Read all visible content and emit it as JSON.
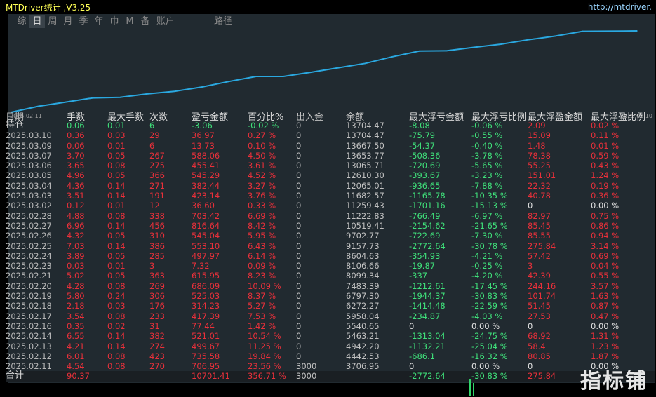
{
  "window": {
    "title": "MTDriver统计 ,V3.25",
    "site": "http://mtdriver."
  },
  "tabs": [
    {
      "label": "综"
    },
    {
      "label": "日",
      "active": true
    },
    {
      "label": "周"
    },
    {
      "label": "月"
    },
    {
      "label": "季"
    },
    {
      "label": "年"
    },
    {
      "label": "巾"
    },
    {
      "label": "M"
    },
    {
      "label": "备"
    },
    {
      "label": "账户"
    }
  ],
  "tab_path": "路径",
  "colors": {
    "positive": "#e8303a",
    "negative": "#3fe07a",
    "line": "#2aa8e0",
    "panel": "#212a30"
  },
  "chart_data": {
    "type": "line",
    "x_start_label": "2025.02.11",
    "x_end_label": "2025.03.10",
    "x": [
      "2025.02.11",
      "2025.02.12",
      "2025.02.13",
      "2025.02.14",
      "2025.02.16",
      "2025.02.17",
      "2025.02.18",
      "2025.02.19",
      "2025.02.20",
      "2025.02.21",
      "2025.02.23",
      "2025.02.24",
      "2025.02.25",
      "2025.02.26",
      "2025.02.27",
      "2025.02.28",
      "2025.03.02",
      "2025.03.03",
      "2025.03.04",
      "2025.03.05",
      "2025.03.06",
      "2025.03.07",
      "2025.03.09",
      "2025.03.10"
    ],
    "values": [
      3706.95,
      4442.53,
      4942.2,
      5463.21,
      5540.65,
      5958.04,
      6272.27,
      6797.3,
      7483.39,
      8099.34,
      8106.66,
      8604.63,
      9157.73,
      9702.77,
      10519.41,
      11222.83,
      11259.43,
      11682.57,
      12065.01,
      12610.3,
      13065.71,
      13653.77,
      13667.5,
      13704.47
    ]
  },
  "headers": {
    "date": "日期",
    "lots": "手数",
    "max_lots": "最大手数",
    "count": "次数",
    "pl": "盈亏金额",
    "pct": "百分比%",
    "io": "出入金",
    "balance": "余额",
    "max_float_loss": "最大浮亏金额",
    "max_float_loss_pct": "最大浮亏比例",
    "max_float_profit": "最大浮盈金额",
    "max_float_profit_pct": "最大浮盈比例"
  },
  "hold": {
    "date": "持仓",
    "lots": "0.06",
    "max": "0.01",
    "cnt": "6",
    "pl": "-3.06",
    "pct": "-0.02 %",
    "io": "0",
    "bal": "13704.47",
    "mfl": "-8.08",
    "mflp": "-0.06 %",
    "mfp": "2.09",
    "mfpp": "0.02 %"
  },
  "rows": [
    {
      "date": "2025.03.10",
      "lots": "0.36",
      "max": "0.03",
      "cnt": "29",
      "pl": "36.97",
      "pct": "0.27 %",
      "io": "0",
      "bal": "13704.47",
      "mfl": "-75.79",
      "mflp": "-0.55 %",
      "mfp": "15.09",
      "mfpp": "0.11 %"
    },
    {
      "date": "2025.03.09",
      "lots": "0.06",
      "max": "0.01",
      "cnt": "6",
      "pl": "13.73",
      "pct": "0.10 %",
      "io": "0",
      "bal": "13667.50",
      "mfl": "-54.37",
      "mflp": "-0.40 %",
      "mfp": "1.48",
      "mfpp": "0.01 %"
    },
    {
      "date": "2025.03.07",
      "lots": "3.70",
      "max": "0.05",
      "cnt": "267",
      "pl": "588.06",
      "pct": "4.50 %",
      "io": "0",
      "bal": "13653.77",
      "mfl": "-508.36",
      "mflp": "-3.78 %",
      "mfp": "78.38",
      "mfpp": "0.59 %"
    },
    {
      "date": "2025.03.06",
      "lots": "3.65",
      "max": "0.08",
      "cnt": "275",
      "pl": "455.41",
      "pct": "3.61 %",
      "io": "0",
      "bal": "13065.71",
      "mfl": "-720.69",
      "mflp": "-5.65 %",
      "mfp": "55.25",
      "mfpp": "0.43 %"
    },
    {
      "date": "2025.03.05",
      "lots": "4.96",
      "max": "0.05",
      "cnt": "366",
      "pl": "545.29",
      "pct": "4.52 %",
      "io": "0",
      "bal": "12610.30",
      "mfl": "-393.67",
      "mflp": "-3.23 %",
      "mfp": "151.01",
      "mfpp": "1.24 %"
    },
    {
      "date": "2025.03.04",
      "lots": "4.36",
      "max": "0.14",
      "cnt": "271",
      "pl": "382.44",
      "pct": "3.27 %",
      "io": "0",
      "bal": "12065.01",
      "mfl": "-936.65",
      "mflp": "-7.88 %",
      "mfp": "22.32",
      "mfpp": "0.19 %"
    },
    {
      "date": "2025.03.03",
      "lots": "3.51",
      "max": "0.14",
      "cnt": "191",
      "pl": "423.14",
      "pct": "3.76 %",
      "io": "0",
      "bal": "11682.57",
      "mfl": "-1165.78",
      "mflp": "-10.35 %",
      "mfp": "40.78",
      "mfpp": "0.36 %"
    },
    {
      "date": "2025.03.02",
      "lots": "0.12",
      "max": "0.01",
      "cnt": "12",
      "pl": "36.60",
      "pct": "0.33 %",
      "io": "0",
      "bal": "11259.43",
      "mfl": "-1701.16",
      "mflp": "-15.13 %",
      "mfp": "0",
      "mfpp": "0.00 %"
    },
    {
      "date": "2025.02.28",
      "lots": "4.88",
      "max": "0.08",
      "cnt": "338",
      "pl": "703.42",
      "pct": "6.69 %",
      "io": "0",
      "bal": "11222.83",
      "mfl": "-766.49",
      "mflp": "-6.97 %",
      "mfp": "82.97",
      "mfpp": "0.75 %"
    },
    {
      "date": "2025.02.27",
      "lots": "6.96",
      "max": "0.14",
      "cnt": "456",
      "pl": "816.64",
      "pct": "8.42 %",
      "io": "0",
      "bal": "10519.41",
      "mfl": "-2154.62",
      "mflp": "-21.65 %",
      "mfp": "85.45",
      "mfpp": "0.86 %"
    },
    {
      "date": "2025.02.26",
      "lots": "4.32",
      "max": "0.05",
      "cnt": "310",
      "pl": "545.04",
      "pct": "5.95 %",
      "io": "0",
      "bal": "9702.77",
      "mfl": "-722.69",
      "mflp": "-7.30 %",
      "mfp": "85.55",
      "mfpp": "0.94 %"
    },
    {
      "date": "2025.02.25",
      "lots": "7.03",
      "max": "0.14",
      "cnt": "386",
      "pl": "553.10",
      "pct": "6.43 %",
      "io": "0",
      "bal": "9157.73",
      "mfl": "-2772.64",
      "mflp": "-30.78 %",
      "mfp": "275.84",
      "mfpp": "3.14 %"
    },
    {
      "date": "2025.02.24",
      "lots": "3.89",
      "max": "0.05",
      "cnt": "285",
      "pl": "497.97",
      "pct": "6.14 %",
      "io": "0",
      "bal": "8604.63",
      "mfl": "-354.93",
      "mflp": "-4.21 %",
      "mfp": "57.42",
      "mfpp": "0.69 %"
    },
    {
      "date": "2025.02.23",
      "lots": "0.03",
      "max": "0.01",
      "cnt": "3",
      "pl": "7.32",
      "pct": "0.09 %",
      "io": "0",
      "bal": "8106.66",
      "mfl": "-19.87",
      "mflp": "-0.25 %",
      "mfp": "3",
      "mfpp": "0.04 %"
    },
    {
      "date": "2025.02.21",
      "lots": "5.02",
      "max": "0.05",
      "cnt": "363",
      "pl": "615.95",
      "pct": "8.23 %",
      "io": "0",
      "bal": "8099.34",
      "mfl": "-337",
      "mflp": "-4.20 %",
      "mfp": "42.39",
      "mfpp": "0.55 %"
    },
    {
      "date": "2025.02.20",
      "lots": "4.28",
      "max": "0.08",
      "cnt": "269",
      "pl": "686.09",
      "pct": "10.09 %",
      "io": "0",
      "bal": "7483.39",
      "mfl": "-1212.61",
      "mflp": "-17.45 %",
      "mfp": "244.16",
      "mfpp": "3.57 %"
    },
    {
      "date": "2025.02.19",
      "lots": "5.80",
      "max": "0.24",
      "cnt": "306",
      "pl": "525.03",
      "pct": "8.37 %",
      "io": "0",
      "bal": "6797.30",
      "mfl": "-1944.37",
      "mflp": "-30.83 %",
      "mfp": "101.74",
      "mfpp": "1.63 %"
    },
    {
      "date": "2025.02.18",
      "lots": "2.18",
      "max": "0.03",
      "cnt": "176",
      "pl": "314.23",
      "pct": "5.27 %",
      "io": "0",
      "bal": "6272.27",
      "mfl": "-1414.48",
      "mflp": "-22.59 %",
      "mfp": "51.45",
      "mfpp": "0.87 %"
    },
    {
      "date": "2025.02.17",
      "lots": "3.54",
      "max": "0.08",
      "cnt": "233",
      "pl": "417.39",
      "pct": "7.53 %",
      "io": "0",
      "bal": "5958.04",
      "mfl": "-234.87",
      "mflp": "-4.03 %",
      "mfp": "27.53",
      "mfpp": "0.47 %"
    },
    {
      "date": "2025.02.16",
      "lots": "0.35",
      "max": "0.02",
      "cnt": "31",
      "pl": "77.44",
      "pct": "1.42 %",
      "io": "0",
      "bal": "5540.65",
      "mfl": "0",
      "mflp": "0.00 %",
      "mfp": "0",
      "mfpp": "0.00 %"
    },
    {
      "date": "2025.02.14",
      "lots": "6.55",
      "max": "0.14",
      "cnt": "382",
      "pl": "521.01",
      "pct": "10.54 %",
      "io": "0",
      "bal": "5463.21",
      "mfl": "-1313.04",
      "mflp": "-24.75 %",
      "mfp": "68.92",
      "mfpp": "1.31 %"
    },
    {
      "date": "2025.02.13",
      "lots": "4.21",
      "max": "0.14",
      "cnt": "274",
      "pl": "499.67",
      "pct": "11.25 %",
      "io": "0",
      "bal": "4942.20",
      "mfl": "-1132.21",
      "mflp": "-25.04 %",
      "mfp": "58.4",
      "mfpp": "1.23 %"
    },
    {
      "date": "2025.02.12",
      "lots": "6.01",
      "max": "0.08",
      "cnt": "423",
      "pl": "735.58",
      "pct": "19.84 %",
      "io": "0",
      "bal": "4442.53",
      "mfl": "-686.1",
      "mflp": "-16.32 %",
      "mfp": "80.85",
      "mfpp": "1.87 %"
    },
    {
      "date": "2025.02.11",
      "lots": "4.54",
      "max": "0.08",
      "cnt": "270",
      "pl": "706.95",
      "pct": "23.56 %",
      "io": "3000",
      "bal": "3706.95",
      "mfl": "0",
      "mflp": "0.00 %",
      "mfp": "0",
      "mfpp": "0.00 %"
    }
  ],
  "total": {
    "date": "合计",
    "lots": "90.37",
    "max": "",
    "cnt": "",
    "pl": "10701.41",
    "pct": "356.71 %",
    "io": "3000",
    "bal": "",
    "mfl": "-2772.64",
    "mflp": "-30.83 %",
    "mfp": "275.84",
    "mfpp": ""
  },
  "watermark": "指标铺"
}
